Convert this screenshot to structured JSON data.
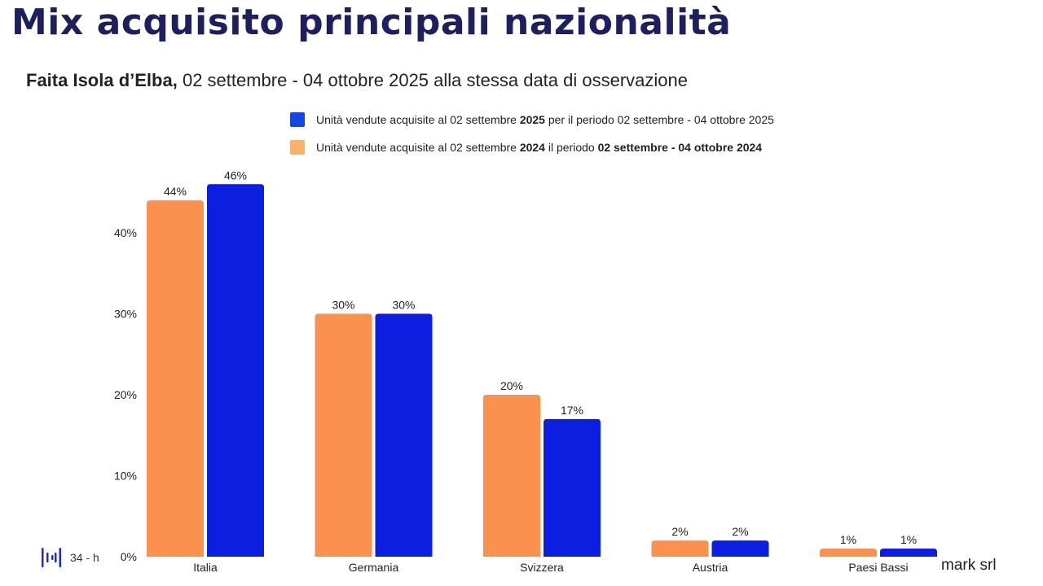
{
  "header": {
    "title": "Mix acquisito principali nazionalità",
    "subtitle_bold": "Faita Isola d’Elba,",
    "subtitle_rest": " 02 settembre - 04 ottobre 2025 alla stessa data di osservazione"
  },
  "legend": [
    {
      "parts": [
        "Unità vendute acquisite al 02 settembre ",
        "2025",
        " per il periodo 02 settembre - 04 ottobre 2025",
        ""
      ],
      "color": "#1446e6"
    },
    {
      "parts": [
        "Unità vendute acquisite al 02 settembre ",
        "2024",
        " il periodo ",
        "02 settembre - 04 ottobre 2024"
      ],
      "color": "#f9b26c"
    }
  ],
  "footer": {
    "page_label": "34 - h",
    "brand": "mark srl"
  },
  "chart_data": {
    "type": "bar",
    "title": "Mix acquisito principali nazionalità",
    "xlabel": "",
    "ylabel": "",
    "categories": [
      "Italia",
      "Germania",
      "Svizzera",
      "Austria",
      "Paesi Bassi"
    ],
    "series": [
      {
        "name": "Unità vendute acquisite al 02 settembre 2024 il periodo 02 settembre - 04 ottobre 2024",
        "values": [
          44,
          30,
          20,
          2,
          1
        ],
        "color": "#fb914f"
      },
      {
        "name": "Unità vendute acquisite al 02 settembre 2025 per il periodo 02 settembre - 04 ottobre 2025",
        "values": [
          46,
          30,
          17,
          2,
          1
        ],
        "color": "#0c1fe0"
      }
    ],
    "value_labels": [
      [
        "44%",
        "30%",
        "20%",
        "2%",
        "1%"
      ],
      [
        "46%",
        "30%",
        "17%",
        "2%",
        "1%"
      ]
    ],
    "yticks": [
      0,
      10,
      20,
      30,
      40
    ],
    "ytick_labels": [
      "0%",
      "10%",
      "20%",
      "30%",
      "40%"
    ],
    "ylim": [
      0,
      46
    ],
    "grid": false,
    "legend_position": "top"
  }
}
